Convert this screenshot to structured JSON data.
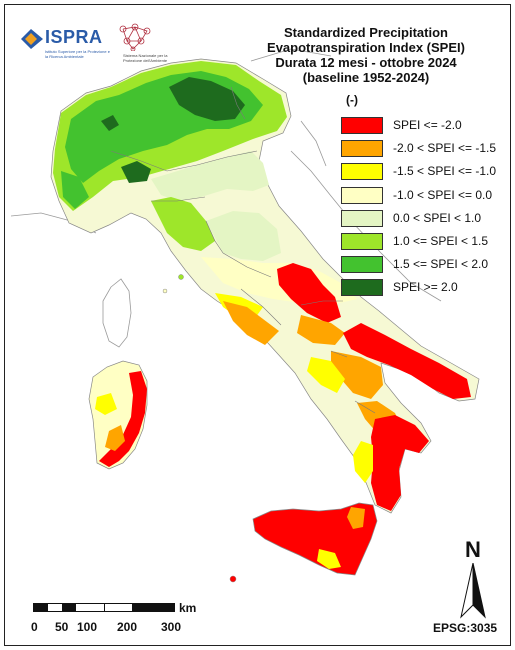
{
  "logos": {
    "ispra_name": "ISPRA",
    "ispra_subtitle": "Istituto Superiore per la Protezione e la Ricerca Ambientale",
    "snpa_subtitle": "Sistema Nazionale per la Protezione dell'Ambiente"
  },
  "title": {
    "line1": "Standardized Precipitation",
    "line2": "Evapotranspiration  Index (SPEI)",
    "line3": "Durata 12 mesi - ottobre 2024",
    "line4": "(baseline 1952-2024)"
  },
  "legend": {
    "unit": "(-)",
    "items": [
      {
        "label": "SPEI <= -2.0",
        "color": "#ff0000"
      },
      {
        "label": "-2.0 < SPEI <= -1.5",
        "color": "#ffa500"
      },
      {
        "label": "-1.5 < SPEI <= -1.0",
        "color": "#ffff00"
      },
      {
        "label": "-1.0 < SPEI <= 0.0",
        "color": "#ffffc4"
      },
      {
        "label": "0.0 < SPEI < 1.0",
        "color": "#e4f5c4"
      },
      {
        "label": "1.0 <= SPEI < 1.5",
        "color": "#9ee62a"
      },
      {
        "label": "1.5 <= SPEI < 2.0",
        "color": "#43c22f"
      },
      {
        "label": "SPEI >= 2.0",
        "color": "#1e6b1e"
      }
    ]
  },
  "north_arrow": {
    "letter": "N"
  },
  "projection": "EPSG:3035",
  "scale_bar": {
    "unit": "km",
    "ticks": [
      "0",
      "50",
      "100",
      "200",
      "300"
    ]
  }
}
